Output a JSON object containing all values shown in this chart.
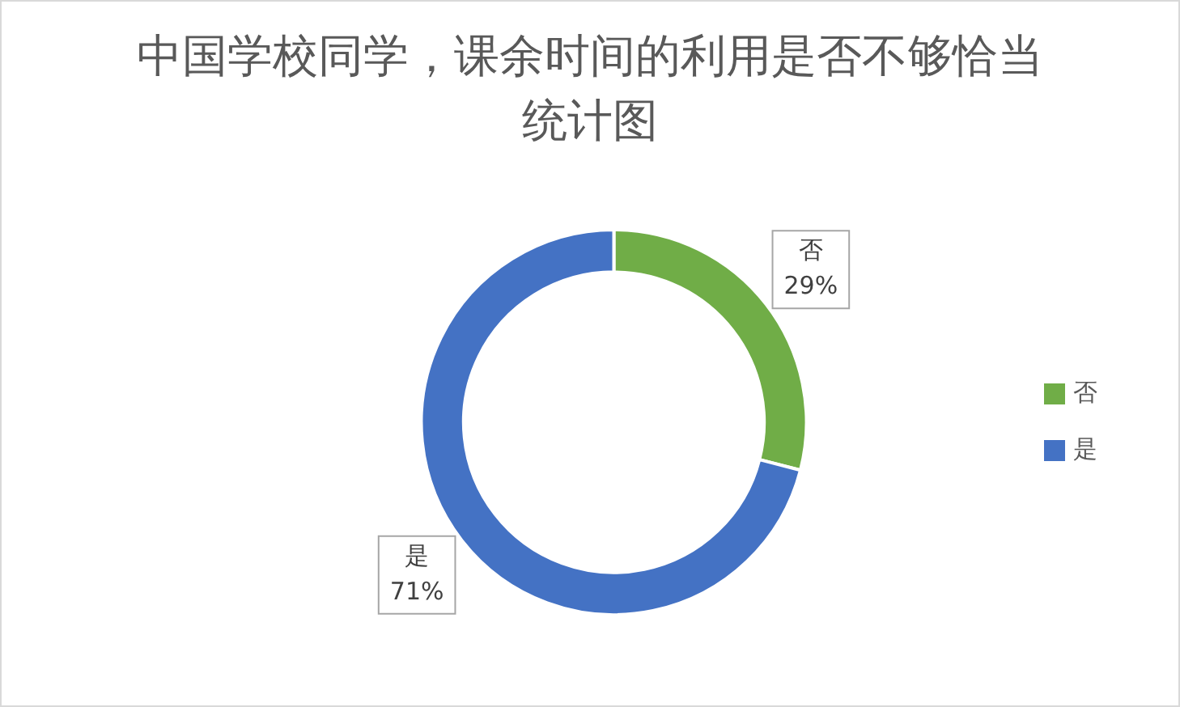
{
  "chart_data": {
    "type": "donut",
    "title": "中国学校同学，课余时间的利用是否不够恰当统计图",
    "categories": [
      "否",
      "是"
    ],
    "values": [
      29,
      71
    ],
    "value_labels": [
      "29%",
      "71%"
    ],
    "colors": [
      "#70ad47",
      "#4472c4"
    ],
    "legend": "right"
  }
}
